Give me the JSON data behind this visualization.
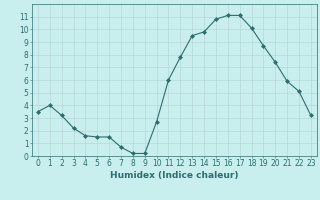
{
  "x": [
    0,
    1,
    2,
    3,
    4,
    5,
    6,
    7,
    8,
    9,
    10,
    11,
    12,
    13,
    14,
    15,
    16,
    17,
    18,
    19,
    20,
    21,
    22,
    23
  ],
  "y": [
    3.5,
    4.0,
    3.2,
    2.2,
    1.6,
    1.5,
    1.5,
    0.7,
    0.2,
    0.2,
    2.7,
    6.0,
    7.8,
    9.5,
    9.8,
    10.8,
    11.1,
    11.1,
    10.1,
    8.7,
    7.4,
    5.9,
    5.1,
    3.2
  ],
  "xlabel": "Humidex (Indice chaleur)",
  "line_color": "#2e6e6e",
  "marker": "D",
  "marker_size": 2.0,
  "bg_color": "#c8eeee",
  "grid_color": "#b8d8d8",
  "ylim": [
    0,
    12
  ],
  "xlim": [
    -0.5,
    23.5
  ],
  "yticks": [
    0,
    1,
    2,
    3,
    4,
    5,
    6,
    7,
    8,
    9,
    10,
    11
  ],
  "xticks": [
    0,
    1,
    2,
    3,
    4,
    5,
    6,
    7,
    8,
    9,
    10,
    11,
    12,
    13,
    14,
    15,
    16,
    17,
    18,
    19,
    20,
    21,
    22,
    23
  ],
  "tick_label_fontsize": 5.5,
  "xlabel_fontsize": 6.5,
  "tick_color": "#2e6e6e",
  "spine_color": "#2e6e6e"
}
